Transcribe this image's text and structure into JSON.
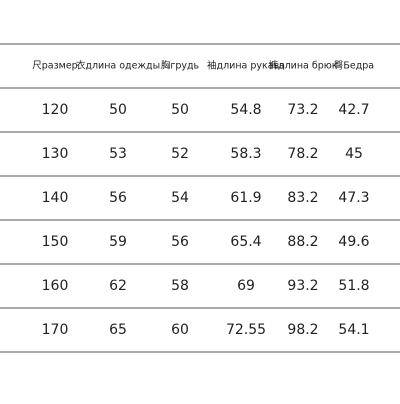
{
  "table": {
    "header": [
      "尺размер",
      "衣длина одежды",
      "胸грудь",
      "袖длина рукава",
      "裤длина брюк",
      "臀Бедра"
    ],
    "rows": [
      [
        "120",
        "50",
        "50",
        "54.8",
        "73.2",
        "42.7"
      ],
      [
        "130",
        "53",
        "52",
        "58.3",
        "78.2",
        "45"
      ],
      [
        "140",
        "56",
        "54",
        "61.9",
        "83.2",
        "47.3"
      ],
      [
        "150",
        "59",
        "56",
        "65.4",
        "88.2",
        "49.6"
      ],
      [
        "160",
        "62",
        "58",
        "69",
        "93.2",
        "51.8"
      ],
      [
        "170",
        "65",
        "60",
        "72.55",
        "98.2",
        "54.1"
      ]
    ]
  }
}
